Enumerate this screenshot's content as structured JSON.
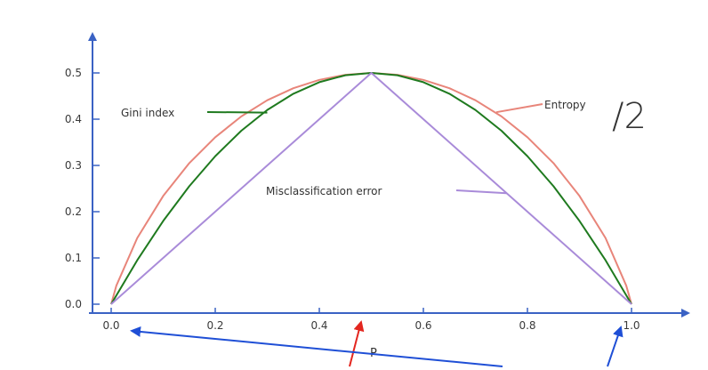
{
  "chart_data": {
    "type": "line",
    "title": "",
    "xlabel": "P",
    "ylabel": "",
    "xlim": [
      0,
      1
    ],
    "ylim": [
      0,
      0.55
    ],
    "x_ticks": [
      "0.0",
      "0.2",
      "0.4",
      "0.6",
      "0.8",
      "1.0"
    ],
    "y_ticks": [
      "0.0",
      "0.1",
      "0.2",
      "0.3",
      "0.4",
      "0.5"
    ],
    "x_tick_values": [
      0,
      0.2,
      0.4,
      0.6,
      0.8,
      1.0
    ],
    "y_tick_values": [
      0,
      0.1,
      0.2,
      0.3,
      0.4,
      0.5
    ],
    "grid": false,
    "series": [
      {
        "name": "Gini index",
        "color": "#1f7a1f",
        "x": [
          0,
          0.05,
          0.1,
          0.15,
          0.2,
          0.25,
          0.3,
          0.35,
          0.4,
          0.45,
          0.5,
          0.55,
          0.6,
          0.65,
          0.7,
          0.75,
          0.8,
          0.85,
          0.9,
          0.95,
          1.0
        ],
        "y": [
          0,
          0.095,
          0.18,
          0.255,
          0.32,
          0.375,
          0.42,
          0.455,
          0.48,
          0.495,
          0.5,
          0.495,
          0.48,
          0.455,
          0.42,
          0.375,
          0.32,
          0.255,
          0.18,
          0.095,
          0
        ]
      },
      {
        "name": "Entropy",
        "name_suffix": "/2",
        "color": "#e8857a",
        "x": [
          0,
          0.01,
          0.05,
          0.1,
          0.15,
          0.2,
          0.25,
          0.3,
          0.35,
          0.4,
          0.45,
          0.5,
          0.55,
          0.6,
          0.65,
          0.7,
          0.75,
          0.8,
          0.85,
          0.9,
          0.95,
          0.99,
          1.0
        ],
        "y": [
          0,
          0.04,
          0.143,
          0.234,
          0.305,
          0.361,
          0.406,
          0.441,
          0.467,
          0.485,
          0.496,
          0.5,
          0.496,
          0.485,
          0.467,
          0.441,
          0.406,
          0.361,
          0.305,
          0.234,
          0.143,
          0.04,
          0
        ]
      },
      {
        "name": "Misclassification error",
        "color": "#a98bd9",
        "x": [
          0,
          0.5,
          1.0
        ],
        "y": [
          0,
          0.5,
          0
        ]
      }
    ],
    "annotations": [
      {
        "text": "Gini index",
        "series": 0
      },
      {
        "text": "Misclassification error",
        "series": 2
      },
      {
        "text": "Entropy",
        "series": 1
      }
    ]
  }
}
